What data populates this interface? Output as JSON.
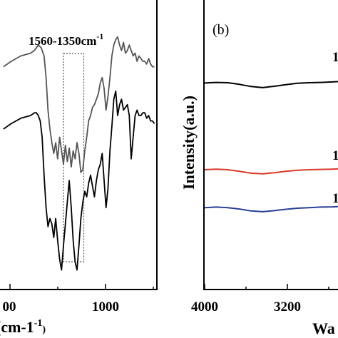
{
  "chart_data": [
    {
      "panel": "a",
      "type": "line",
      "xlabel": "cm-1",
      "x_tick_labels": [
        "00",
        "1000"
      ],
      "x_axis_reversed": true,
      "annotation": "1560-1350cm",
      "annotation_superscript": "-1",
      "highlight_region": [
        1560,
        1350
      ],
      "series": [
        {
          "color": "#555555",
          "x": [
            2180,
            2100,
            2000,
            1900,
            1860,
            1820,
            1790,
            1760,
            1740,
            1720,
            1700,
            1680,
            1660,
            1640,
            1620,
            1600,
            1580,
            1560,
            1540,
            1520,
            1500,
            1480,
            1460,
            1440,
            1420,
            1400,
            1380,
            1360,
            1340,
            1320,
            1300,
            1280,
            1260,
            1240,
            1220,
            1200,
            1180,
            1160,
            1140,
            1120,
            1100,
            1080,
            1060,
            1040,
            1020,
            1000,
            980,
            960,
            940,
            920,
            900,
            880,
            860,
            840,
            820,
            800,
            780,
            760,
            740,
            720,
            700,
            680,
            660,
            640,
            620
          ],
          "y": [
            0.78,
            0.8,
            0.82,
            0.83,
            0.84,
            0.86,
            0.85,
            0.82,
            0.74,
            0.62,
            0.55,
            0.5,
            0.46,
            0.5,
            0.44,
            0.52,
            0.47,
            0.42,
            0.49,
            0.43,
            0.48,
            0.41,
            0.47,
            0.44,
            0.5,
            0.46,
            0.39,
            0.4,
            0.47,
            0.52,
            0.58,
            0.6,
            0.63,
            0.64,
            0.66,
            0.68,
            0.72,
            0.74,
            0.7,
            0.62,
            0.67,
            0.74,
            0.82,
            0.86,
            0.88,
            0.89,
            0.86,
            0.84,
            0.87,
            0.83,
            0.84,
            0.86,
            0.84,
            0.82,
            0.83,
            0.8,
            0.82,
            0.81,
            0.8,
            0.8,
            0.79,
            0.81,
            0.79,
            0.78,
            0.78
          ]
        },
        {
          "color": "#000000",
          "x": [
            2180,
            2100,
            2000,
            1900,
            1860,
            1840,
            1820,
            1800,
            1780,
            1760,
            1740,
            1720,
            1700,
            1680,
            1660,
            1640,
            1620,
            1600,
            1580,
            1560,
            1540,
            1520,
            1500,
            1480,
            1460,
            1440,
            1420,
            1400,
            1380,
            1360,
            1340,
            1320,
            1300,
            1280,
            1260,
            1240,
            1220,
            1200,
            1180,
            1160,
            1140,
            1120,
            1100,
            1080,
            1060,
            1040,
            1020,
            1000,
            980,
            960,
            940,
            920,
            900,
            880,
            860,
            840,
            820,
            800,
            780,
            760,
            740,
            720,
            700,
            680,
            660,
            640,
            620
          ],
          "y": [
            0.55,
            0.57,
            0.59,
            0.6,
            0.61,
            0.61,
            0.6,
            0.58,
            0.52,
            0.38,
            0.26,
            0.19,
            0.22,
            0.2,
            0.15,
            0.22,
            0.14,
            0.07,
            0.03,
            0.12,
            0.2,
            0.28,
            0.36,
            0.26,
            0.14,
            0.06,
            0.03,
            0.12,
            0.22,
            0.28,
            0.32,
            0.3,
            0.35,
            0.38,
            0.34,
            0.3,
            0.36,
            0.4,
            0.42,
            0.46,
            0.36,
            0.26,
            0.33,
            0.47,
            0.56,
            0.66,
            0.69,
            0.6,
            0.64,
            0.66,
            0.62,
            0.63,
            0.64,
            0.6,
            0.44,
            0.52,
            0.6,
            0.62,
            0.6,
            0.6,
            0.61,
            0.61,
            0.59,
            0.6,
            0.58,
            0.58,
            0.57
          ]
        }
      ]
    },
    {
      "panel": "b",
      "panel_label": "(b)",
      "type": "line",
      "ylabel": "Intensity(a.u.)",
      "xlabel": "Wa",
      "x_tick_labels": [
        "4000",
        "3200"
      ],
      "x_axis_reversed": true,
      "series": [
        {
          "color": "#000000",
          "x": [
            4000,
            3900,
            3800,
            3700,
            3600,
            3500,
            3400,
            3300,
            3200,
            3100,
            3000,
            2900,
            2850
          ],
          "y": [
            0.72,
            0.722,
            0.721,
            0.715,
            0.707,
            0.703,
            0.708,
            0.714,
            0.719,
            0.721,
            0.722,
            0.724,
            0.725
          ]
        },
        {
          "color": "#d93a2b",
          "x": [
            4000,
            3900,
            3800,
            3700,
            3600,
            3500,
            3400,
            3300,
            3200,
            3100,
            3000,
            2900,
            2850
          ],
          "y": [
            0.4,
            0.402,
            0.4,
            0.394,
            0.387,
            0.385,
            0.389,
            0.394,
            0.398,
            0.4,
            0.401,
            0.402,
            0.403
          ]
        },
        {
          "color": "#2a3f96",
          "x": [
            4000,
            3900,
            3800,
            3700,
            3600,
            3500,
            3400,
            3300,
            3200,
            3100,
            3000,
            2900,
            2850
          ],
          "y": [
            0.26,
            0.262,
            0.26,
            0.255,
            0.248,
            0.245,
            0.249,
            0.254,
            0.258,
            0.26,
            0.262,
            0.263,
            0.264
          ]
        }
      ],
      "series_end_labels": [
        "1",
        "1",
        "1"
      ]
    }
  ]
}
